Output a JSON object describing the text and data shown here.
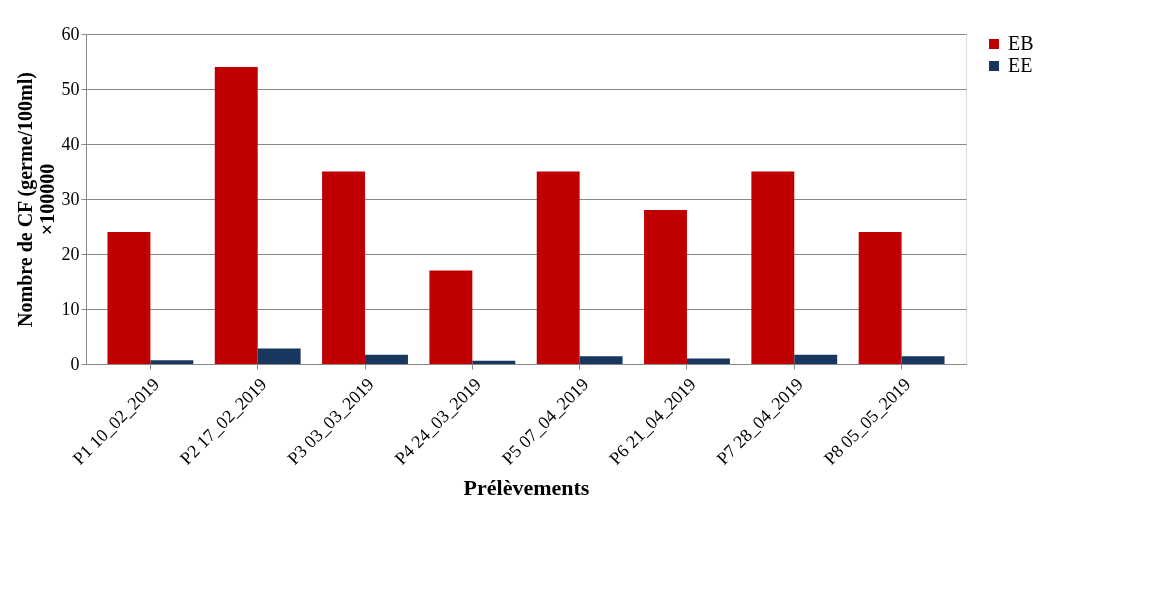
{
  "chart_data": {
    "type": "bar",
    "xlabel": "Prélèvements",
    "ylabel": "Nombre de CF (germe/100ml) ×100000",
    "categories": [
      "P1 10_02_2019",
      "P2 17_02_2019",
      "P3 03_03_2019",
      "P4 24_03_2019",
      "P5 07_04_2019",
      "P6 21_04_2019",
      "P7 28_04_2019",
      "P8 05_05_2019"
    ],
    "series": [
      {
        "name": "EB",
        "color": "#c00000",
        "values": [
          24,
          54,
          35,
          17,
          35,
          28,
          35,
          24
        ]
      },
      {
        "name": "EE",
        "color": "#17375e",
        "values": [
          0.7,
          2.8,
          1.7,
          0.6,
          1.4,
          1.0,
          1.7,
          1.4
        ]
      }
    ],
    "ylim": [
      0,
      60
    ],
    "yticks": [
      0,
      10,
      20,
      30,
      40,
      50,
      60
    ],
    "grid": "y",
    "legend": "right"
  }
}
